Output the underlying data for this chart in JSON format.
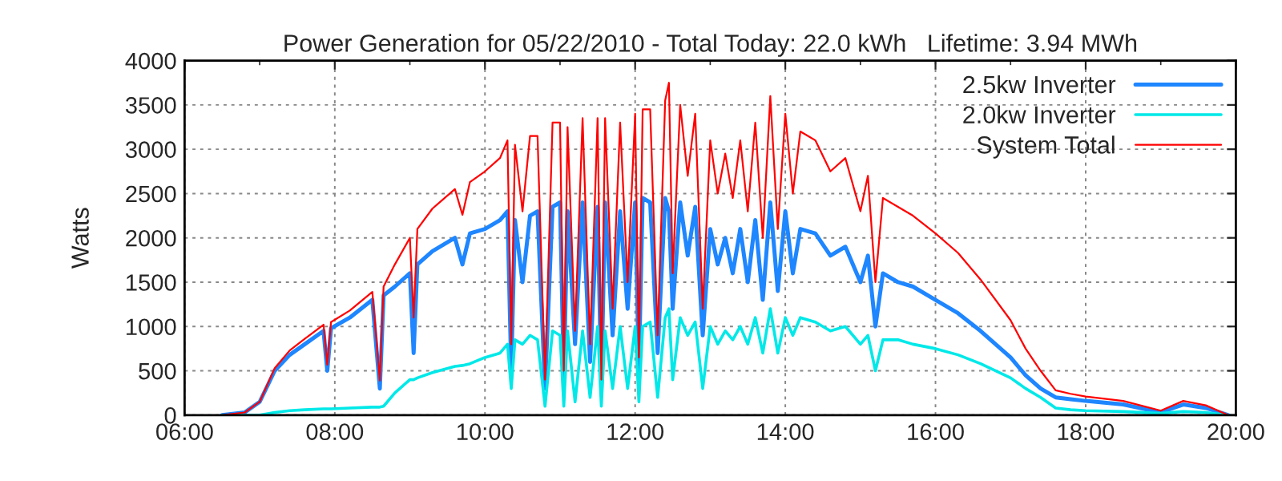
{
  "chart_data": {
    "type": "line",
    "title": "Power Generation for 05/22/2010 - Total Today: 22.0 kWh   Lifetime: 3.94 MWh",
    "ylabel": "Watts",
    "x": [
      6.5,
      6.8,
      7.0,
      7.2,
      7.4,
      7.6,
      7.85,
      7.9,
      7.95,
      8.2,
      8.5,
      8.6,
      8.65,
      8.8,
      9.0,
      9.05,
      9.1,
      9.3,
      9.6,
      9.7,
      9.8,
      10.0,
      10.2,
      10.3,
      10.35,
      10.4,
      10.5,
      10.6,
      10.7,
      10.8,
      10.9,
      11.0,
      11.05,
      11.1,
      11.2,
      11.3,
      11.4,
      11.5,
      11.55,
      11.6,
      11.7,
      11.8,
      11.9,
      12.0,
      12.05,
      12.1,
      12.2,
      12.3,
      12.4,
      12.45,
      12.5,
      12.6,
      12.7,
      12.8,
      12.9,
      13.0,
      13.1,
      13.2,
      13.3,
      13.4,
      13.5,
      13.6,
      13.7,
      13.8,
      13.9,
      14.0,
      14.1,
      14.2,
      14.4,
      14.6,
      14.8,
      15.0,
      15.1,
      15.2,
      15.3,
      15.5,
      15.7,
      16.0,
      16.3,
      16.6,
      17.0,
      17.2,
      17.4,
      17.6,
      17.8,
      18.0,
      18.5,
      19.0,
      19.3,
      19.6,
      19.9
    ],
    "series": [
      {
        "name": "2.5kw Inverter",
        "color": "#1e86ff",
        "values": [
          0,
          30,
          150,
          500,
          680,
          800,
          950,
          500,
          980,
          1100,
          1300,
          300,
          1350,
          1450,
          1600,
          700,
          1700,
          1850,
          2000,
          1700,
          2050,
          2100,
          2200,
          2300,
          500,
          2200,
          1500,
          2250,
          2300,
          300,
          2350,
          2400,
          400,
          2300,
          800,
          2400,
          600,
          2350,
          300,
          2400,
          900,
          2300,
          1200,
          2400,
          500,
          2450,
          2400,
          700,
          2450,
          2300,
          1200,
          2400,
          1800,
          2350,
          900,
          2100,
          1700,
          2000,
          1600,
          2100,
          1500,
          2200,
          1300,
          2400,
          1400,
          2300,
          1600,
          2100,
          2050,
          1800,
          1900,
          1500,
          1800,
          1000,
          1600,
          1500,
          1450,
          1300,
          1150,
          950,
          650,
          450,
          300,
          200,
          180,
          160,
          120,
          30,
          120,
          80,
          0
        ]
      },
      {
        "name": "2.0kw Inverter",
        "color": "#00e8e8",
        "values": [
          0,
          0,
          0,
          30,
          50,
          60,
          70,
          70,
          70,
          80,
          90,
          90,
          100,
          250,
          400,
          400,
          420,
          480,
          550,
          560,
          580,
          650,
          700,
          800,
          300,
          850,
          800,
          900,
          850,
          100,
          950,
          900,
          100,
          950,
          150,
          950,
          200,
          1000,
          100,
          950,
          300,
          1000,
          300,
          1000,
          150,
          1000,
          1050,
          200,
          1100,
          1200,
          400,
          1100,
          900,
          1050,
          300,
          1000,
          800,
          950,
          850,
          1000,
          800,
          1100,
          700,
          1200,
          700,
          1100,
          900,
          1100,
          1050,
          950,
          1000,
          800,
          900,
          500,
          850,
          850,
          800,
          750,
          680,
          580,
          420,
          300,
          200,
          80,
          60,
          50,
          40,
          20,
          40,
          30,
          0
        ]
      },
      {
        "name": "System Total",
        "color": "#ff0000",
        "values": [
          0,
          30,
          150,
          530,
          730,
          860,
          1020,
          570,
          1050,
          1180,
          1390,
          390,
          1450,
          1700,
          2000,
          1100,
          2100,
          2330,
          2550,
          2260,
          2630,
          2750,
          2900,
          3100,
          800,
          3050,
          2300,
          3150,
          3150,
          400,
          3300,
          3300,
          500,
          3250,
          950,
          3350,
          800,
          3350,
          400,
          3350,
          1200,
          3300,
          1500,
          3400,
          650,
          3450,
          3450,
          900,
          3550,
          3750,
          1600,
          3500,
          2700,
          3400,
          1200,
          3100,
          2500,
          2950,
          2450,
          3100,
          2300,
          3300,
          2000,
          3600,
          2100,
          3400,
          2500,
          3200,
          3100,
          2750,
          2900,
          2300,
          2700,
          1500,
          2450,
          2350,
          2250,
          2050,
          1830,
          1530,
          1070,
          750,
          500,
          280,
          240,
          210,
          160,
          50,
          160,
          110,
          0
        ]
      }
    ],
    "xlim": [
      6,
      20
    ],
    "xticks": [
      {
        "value": 6,
        "label": "06:00"
      },
      {
        "value": 7,
        "label": null
      },
      {
        "value": 8,
        "label": "08:00"
      },
      {
        "value": 9,
        "label": null
      },
      {
        "value": 10,
        "label": "10:00"
      },
      {
        "value": 11,
        "label": null
      },
      {
        "value": 12,
        "label": "12:00"
      },
      {
        "value": 13,
        "label": null
      },
      {
        "value": 14,
        "label": "14:00"
      },
      {
        "value": 15,
        "label": null
      },
      {
        "value": 16,
        "label": "16:00"
      },
      {
        "value": 17,
        "label": null
      },
      {
        "value": 18,
        "label": "18:00"
      },
      {
        "value": 19,
        "label": null
      },
      {
        "value": 20,
        "label": "20:00"
      }
    ],
    "ylim": [
      0,
      4000
    ],
    "yticks": [
      0,
      500,
      1000,
      1500,
      2000,
      2500,
      3000,
      3500,
      4000
    ],
    "grid": true,
    "legend": "top right",
    "line_style": "solid",
    "marker": "none"
  }
}
